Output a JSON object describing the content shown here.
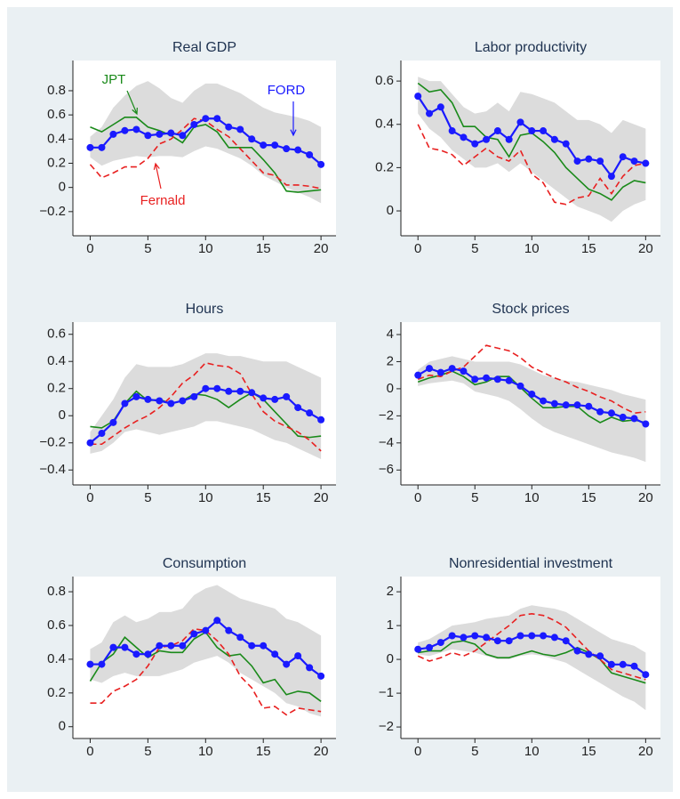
{
  "chart_data": [
    {
      "type": "line",
      "title": "Real GDP",
      "x": [
        0,
        1,
        2,
        3,
        4,
        5,
        6,
        7,
        8,
        9,
        10,
        11,
        12,
        13,
        14,
        15,
        16,
        17,
        18,
        19,
        20
      ],
      "xlim": [
        -1.5,
        21.3
      ],
      "xticks": [
        0,
        5,
        10,
        15,
        20
      ],
      "ylim": [
        -0.4,
        1.05
      ],
      "yticks": [
        {
          "value": -0.2,
          "label": "−0.2"
        },
        0,
        0.2,
        0.4,
        0.6,
        0.8
      ],
      "band": {
        "color": "#dcdcdc",
        "lower": [
          0.25,
          0.18,
          0.22,
          0.24,
          0.26,
          0.25,
          0.26,
          0.26,
          0.25,
          0.3,
          0.34,
          0.32,
          0.28,
          0.24,
          0.18,
          0.1,
          0.05,
          0.0,
          -0.04,
          -0.08,
          -0.13
        ],
        "upper": [
          0.42,
          0.5,
          0.66,
          0.76,
          0.84,
          0.88,
          0.82,
          0.74,
          0.7,
          0.8,
          0.86,
          0.86,
          0.82,
          0.78,
          0.72,
          0.66,
          0.62,
          0.6,
          0.58,
          0.55,
          0.5
        ]
      },
      "series": [
        {
          "name": "JPT",
          "color": "#1a8a1a",
          "values": [
            0.5,
            0.46,
            0.52,
            0.58,
            0.58,
            0.5,
            0.47,
            0.43,
            0.37,
            0.5,
            0.52,
            0.46,
            0.33,
            0.33,
            0.33,
            0.23,
            0.12,
            -0.03,
            -0.04,
            -0.03,
            -0.02
          ]
        },
        {
          "name": "Fernald",
          "color": "#e82020",
          "dashed": true,
          "values": [
            0.19,
            0.08,
            0.12,
            0.17,
            0.17,
            0.24,
            0.36,
            0.4,
            0.48,
            0.57,
            0.55,
            0.48,
            0.42,
            0.32,
            0.22,
            0.12,
            0.1,
            0.02,
            0.02,
            0.01,
            -0.01
          ]
        },
        {
          "name": "FORD",
          "color": "#1a1aff",
          "markers": true,
          "values": [
            0.33,
            0.33,
            0.44,
            0.47,
            0.48,
            0.43,
            0.44,
            0.45,
            0.43,
            0.52,
            0.57,
            0.57,
            0.5,
            0.48,
            0.4,
            0.35,
            0.35,
            0.32,
            0.31,
            0.27,
            0.19
          ]
        }
      ],
      "annotations": [
        {
          "text": "JPT",
          "color": "#1a8a1a"
        },
        {
          "text": "FORD",
          "color": "#1a1aff"
        },
        {
          "text": "Fernald",
          "color": "#e82020"
        }
      ]
    },
    {
      "type": "line",
      "title": "Labor productivity",
      "x": [
        0,
        1,
        2,
        3,
        4,
        5,
        6,
        7,
        8,
        9,
        10,
        11,
        12,
        13,
        14,
        15,
        16,
        17,
        18,
        19,
        20
      ],
      "xlim": [
        -1.5,
        21.3
      ],
      "xticks": [
        0,
        5,
        10,
        15,
        20
      ],
      "ylim": [
        -0.115,
        0.695
      ],
      "yticks": [
        0,
        0.2,
        0.4,
        0.6
      ],
      "band": {
        "color": "#dcdcdc",
        "lower": [
          0.45,
          0.38,
          0.34,
          0.28,
          0.24,
          0.2,
          0.2,
          0.22,
          0.18,
          0.22,
          0.18,
          0.14,
          0.1,
          0.06,
          0.02,
          0.0,
          -0.02,
          -0.05,
          0.0,
          0.03,
          0.05
        ],
        "upper": [
          0.62,
          0.6,
          0.6,
          0.54,
          0.48,
          0.45,
          0.46,
          0.5,
          0.46,
          0.55,
          0.54,
          0.52,
          0.5,
          0.46,
          0.42,
          0.42,
          0.4,
          0.36,
          0.42,
          0.4,
          0.38
        ]
      },
      "series": [
        {
          "name": "JPT",
          "color": "#1a8a1a",
          "values": [
            0.59,
            0.55,
            0.56,
            0.5,
            0.39,
            0.39,
            0.34,
            0.33,
            0.25,
            0.35,
            0.36,
            0.32,
            0.27,
            0.2,
            0.15,
            0.1,
            0.08,
            0.05,
            0.11,
            0.14,
            0.13
          ]
        },
        {
          "name": "Fernald",
          "color": "#e82020",
          "dashed": true,
          "values": [
            0.4,
            0.29,
            0.28,
            0.26,
            0.21,
            0.25,
            0.29,
            0.25,
            0.23,
            0.28,
            0.17,
            0.13,
            0.04,
            0.03,
            0.06,
            0.07,
            0.15,
            0.08,
            0.16,
            0.21,
            0.22
          ]
        },
        {
          "name": "FORD",
          "color": "#1a1aff",
          "markers": true,
          "values": [
            0.53,
            0.45,
            0.48,
            0.37,
            0.34,
            0.31,
            0.33,
            0.37,
            0.33,
            0.41,
            0.37,
            0.37,
            0.33,
            0.31,
            0.23,
            0.24,
            0.23,
            0.16,
            0.25,
            0.23,
            0.22
          ]
        }
      ]
    },
    {
      "type": "line",
      "title": "Hours",
      "x": [
        0,
        1,
        2,
        3,
        4,
        5,
        6,
        7,
        8,
        9,
        10,
        11,
        12,
        13,
        14,
        15,
        16,
        17,
        18,
        19,
        20
      ],
      "xlim": [
        -1.5,
        21.3
      ],
      "xticks": [
        0,
        5,
        10,
        15,
        20
      ],
      "ylim": [
        -0.51,
        0.69
      ],
      "yticks": [
        {
          "value": -0.4,
          "label": "−0.4"
        },
        {
          "value": -0.2,
          "label": "−0.2"
        },
        0,
        0.2,
        0.4,
        0.6
      ],
      "band": {
        "color": "#dcdcdc",
        "lower": [
          -0.28,
          -0.26,
          -0.2,
          -0.12,
          -0.1,
          -0.12,
          -0.14,
          -0.12,
          -0.1,
          -0.08,
          -0.04,
          -0.04,
          -0.06,
          -0.08,
          -0.1,
          -0.14,
          -0.18,
          -0.2,
          -0.24,
          -0.28,
          -0.32
        ],
        "upper": [
          -0.12,
          0.0,
          0.12,
          0.28,
          0.38,
          0.36,
          0.36,
          0.36,
          0.38,
          0.42,
          0.46,
          0.46,
          0.44,
          0.44,
          0.42,
          0.4,
          0.4,
          0.4,
          0.36,
          0.32,
          0.28
        ]
      },
      "series": [
        {
          "name": "JPT",
          "color": "#1a8a1a",
          "values": [
            -0.08,
            -0.09,
            -0.04,
            0.09,
            0.18,
            0.11,
            0.12,
            0.09,
            0.11,
            0.16,
            0.15,
            0.12,
            0.06,
            0.12,
            0.17,
            0.12,
            0.03,
            -0.06,
            -0.15,
            -0.16,
            -0.15
          ]
        },
        {
          "name": "Fernald",
          "color": "#e82020",
          "dashed": true,
          "values": [
            -0.21,
            -0.21,
            -0.15,
            -0.09,
            -0.04,
            0.0,
            0.06,
            0.14,
            0.24,
            0.3,
            0.39,
            0.37,
            0.36,
            0.31,
            0.16,
            0.03,
            -0.04,
            -0.08,
            -0.12,
            -0.18,
            -0.26
          ]
        },
        {
          "name": "FORD",
          "color": "#1a1aff",
          "markers": true,
          "values": [
            -0.2,
            -0.13,
            -0.05,
            0.09,
            0.14,
            0.12,
            0.11,
            0.09,
            0.11,
            0.14,
            0.2,
            0.2,
            0.18,
            0.18,
            0.17,
            0.13,
            0.12,
            0.14,
            0.06,
            0.02,
            -0.03
          ]
        }
      ]
    },
    {
      "type": "line",
      "title": "Stock prices",
      "x": [
        0,
        1,
        2,
        3,
        4,
        5,
        6,
        7,
        8,
        9,
        10,
        11,
        12,
        13,
        14,
        15,
        16,
        17,
        18,
        19,
        20
      ],
      "xlim": [
        -1.5,
        21.3
      ],
      "xticks": [
        0,
        5,
        10,
        15,
        20
      ],
      "ylim": [
        -7.1,
        4.92
      ],
      "yticks": [
        {
          "value": -6,
          "label": "−6"
        },
        {
          "value": -4,
          "label": "−4"
        },
        {
          "value": -2,
          "label": "−2"
        },
        0,
        2,
        4
      ],
      "band": {
        "color": "#dcdcdc",
        "lower": [
          0.2,
          0.4,
          0.5,
          0.6,
          0.4,
          -0.2,
          -0.4,
          -0.6,
          -0.9,
          -1.5,
          -2.2,
          -2.8,
          -3.2,
          -3.5,
          -3.8,
          -4.1,
          -4.4,
          -4.7,
          -4.9,
          -5.1,
          -5.4
        ],
        "upper": [
          1.4,
          2.0,
          2.2,
          2.4,
          2.2,
          2.0,
          2.0,
          2.0,
          2.0,
          1.8,
          1.4,
          1.0,
          0.8,
          0.6,
          0.5,
          0.3,
          0.1,
          -0.1,
          -0.4,
          -0.6,
          -0.8
        ]
      },
      "series": [
        {
          "name": "JPT",
          "color": "#1a8a1a",
          "values": [
            0.5,
            0.8,
            1.0,
            1.3,
            0.9,
            0.3,
            0.5,
            0.9,
            0.9,
            0.1,
            -0.7,
            -1.4,
            -1.4,
            -1.3,
            -1.3,
            -2.0,
            -2.5,
            -2.1,
            -2.4,
            -2.3,
            -2.5
          ]
        },
        {
          "name": "Fernald",
          "color": "#e82020",
          "dashed": true,
          "values": [
            0.7,
            1.0,
            0.9,
            1.3,
            1.6,
            2.4,
            3.2,
            3.0,
            2.8,
            2.3,
            1.6,
            1.2,
            0.8,
            0.5,
            0.1,
            -0.2,
            -0.6,
            -0.9,
            -1.4,
            -1.8,
            -1.7
          ]
        },
        {
          "name": "FORD",
          "color": "#1a1aff",
          "markers": true,
          "values": [
            1.0,
            1.5,
            1.2,
            1.5,
            1.3,
            0.7,
            0.8,
            0.7,
            0.6,
            0.2,
            -0.4,
            -0.9,
            -1.1,
            -1.2,
            -1.2,
            -1.3,
            -1.7,
            -1.8,
            -2.1,
            -2.2,
            -2.6
          ]
        }
      ]
    },
    {
      "type": "line",
      "title": "Consumption",
      "x": [
        0,
        1,
        2,
        3,
        4,
        5,
        6,
        7,
        8,
        9,
        10,
        11,
        12,
        13,
        14,
        15,
        16,
        17,
        18,
        19,
        20
      ],
      "xlim": [
        -1.5,
        21.3
      ],
      "xticks": [
        0,
        5,
        10,
        15,
        20
      ],
      "ylim": [
        -0.07,
        0.89
      ],
      "yticks": [
        0,
        0.2,
        0.4,
        0.6,
        0.8
      ],
      "band": {
        "color": "#dcdcdc",
        "lower": [
          0.28,
          0.26,
          0.3,
          0.32,
          0.3,
          0.3,
          0.3,
          0.32,
          0.34,
          0.38,
          0.4,
          0.42,
          0.38,
          0.32,
          0.28,
          0.24,
          0.2,
          0.14,
          0.12,
          0.08,
          0.06
        ],
        "upper": [
          0.46,
          0.5,
          0.62,
          0.66,
          0.62,
          0.64,
          0.68,
          0.68,
          0.7,
          0.78,
          0.82,
          0.84,
          0.8,
          0.76,
          0.74,
          0.72,
          0.7,
          0.64,
          0.62,
          0.58,
          0.54
        ]
      },
      "series": [
        {
          "name": "JPT",
          "color": "#1a8a1a",
          "values": [
            0.27,
            0.38,
            0.43,
            0.53,
            0.47,
            0.41,
            0.45,
            0.44,
            0.44,
            0.52,
            0.56,
            0.47,
            0.42,
            0.43,
            0.36,
            0.26,
            0.28,
            0.19,
            0.21,
            0.2,
            0.15
          ]
        },
        {
          "name": "Fernald",
          "color": "#e82020",
          "dashed": true,
          "values": [
            0.14,
            0.14,
            0.21,
            0.24,
            0.28,
            0.36,
            0.47,
            0.48,
            0.51,
            0.58,
            0.57,
            0.51,
            0.43,
            0.3,
            0.23,
            0.11,
            0.12,
            0.07,
            0.11,
            0.1,
            0.09
          ]
        },
        {
          "name": "FORD",
          "color": "#1a1aff",
          "markers": true,
          "values": [
            0.37,
            0.37,
            0.47,
            0.47,
            0.43,
            0.43,
            0.48,
            0.48,
            0.48,
            0.55,
            0.57,
            0.63,
            0.57,
            0.53,
            0.48,
            0.48,
            0.43,
            0.37,
            0.42,
            0.35,
            0.3
          ]
        }
      ]
    },
    {
      "type": "line",
      "title": "Nonresidential investment",
      "x": [
        0,
        1,
        2,
        3,
        4,
        5,
        6,
        7,
        8,
        9,
        10,
        11,
        12,
        13,
        14,
        15,
        16,
        17,
        18,
        19,
        20
      ],
      "xlim": [
        -1.5,
        21.3
      ],
      "xticks": [
        0,
        5,
        10,
        15,
        20
      ],
      "ylim": [
        -2.34,
        2.45
      ],
      "yticks": [
        {
          "value": -2,
          "label": "−2"
        },
        {
          "value": -1,
          "label": "−1"
        },
        0,
        1,
        2
      ],
      "band": {
        "color": "#dcdcdc",
        "lower": [
          0.15,
          0.1,
          0.2,
          0.3,
          0.25,
          0.2,
          0.1,
          0.0,
          0.0,
          0.1,
          0.15,
          0.1,
          0.0,
          -0.1,
          -0.3,
          -0.5,
          -0.7,
          -0.9,
          -1.1,
          -1.25,
          -1.5
        ],
        "upper": [
          0.5,
          0.6,
          0.8,
          1.0,
          1.05,
          1.1,
          1.2,
          1.25,
          1.3,
          1.5,
          1.6,
          1.55,
          1.5,
          1.4,
          1.2,
          1.0,
          0.8,
          0.6,
          0.5,
          0.4,
          0.2
        ]
      },
      "series": [
        {
          "name": "JPT",
          "color": "#1a8a1a",
          "values": [
            0.2,
            0.25,
            0.25,
            0.5,
            0.55,
            0.45,
            0.15,
            0.05,
            0.05,
            0.15,
            0.25,
            0.15,
            0.1,
            0.2,
            0.35,
            0.2,
            0,
            -0.4,
            -0.5,
            -0.6,
            -0.7
          ]
        },
        {
          "name": "Fernald",
          "color": "#e82020",
          "dashed": true,
          "values": [
            0.1,
            -0.05,
            0.05,
            0.2,
            0.1,
            0.25,
            0.5,
            0.75,
            1.0,
            1.3,
            1.35,
            1.3,
            1.15,
            0.95,
            0.6,
            0.25,
            0.0,
            -0.3,
            -0.4,
            -0.5,
            -0.6
          ]
        },
        {
          "name": "FORD",
          "color": "#1a1aff",
          "markers": true,
          "values": [
            0.3,
            0.35,
            0.5,
            0.7,
            0.65,
            0.7,
            0.65,
            0.55,
            0.55,
            0.7,
            0.7,
            0.7,
            0.65,
            0.55,
            0.25,
            0.15,
            0.1,
            -0.15,
            -0.15,
            -0.2,
            -0.45
          ]
        }
      ]
    }
  ]
}
